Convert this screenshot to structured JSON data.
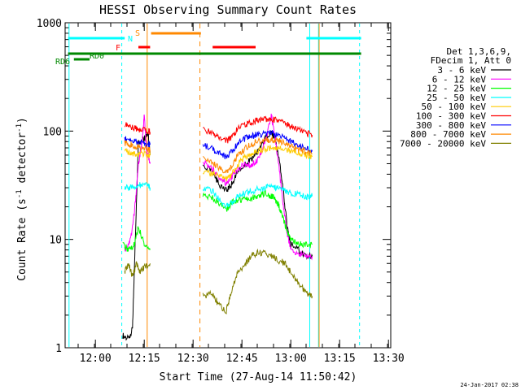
{
  "chart_data": {
    "type": "line",
    "title": "HESSI Observing Summary Count Rates",
    "xlabel": "Start Time (27-Aug-14 11:50:42)",
    "ylabel_main": "Count Rate (s",
    "ylabel_sup1": "-1",
    "ylabel_mid": " detector",
    "ylabel_sup2": "-1",
    "ylabel_end": ")",
    "y_scale": "log",
    "ylim": [
      1,
      1000
    ],
    "xlim": [
      "11:50:42",
      "13:30:42"
    ],
    "x_tick_labels": [
      "12:00",
      "12:15",
      "12:30",
      "12:45",
      "13:00",
      "13:15",
      "13:30"
    ],
    "x_ticks": [
      "12:00",
      "12:15",
      "12:30",
      "12:45",
      "13:00",
      "13:15",
      "13:30"
    ],
    "y_tick_labels": [
      "1",
      "10",
      "100",
      "1000"
    ],
    "y_ticks": [
      1,
      10,
      100,
      1000
    ],
    "legend_header": [
      "Det 1,3,6,9,",
      "FDecim 1, Att 0"
    ],
    "legend_position": "right",
    "series": [
      {
        "name": "3 - 6 keV",
        "color": "#000000",
        "seg1": [
          [
            12.14,
            1.3
          ],
          [
            12.17,
            1.2
          ],
          [
            12.19,
            1.5
          ],
          [
            12.2,
            6
          ],
          [
            12.22,
            80
          ],
          [
            12.25,
            85
          ],
          [
            12.27,
            95
          ],
          [
            12.28,
            60
          ]
        ],
        "seg2": [
          [
            12.55,
            48
          ],
          [
            12.6,
            42
          ],
          [
            12.63,
            33
          ],
          [
            12.67,
            28
          ],
          [
            12.7,
            33
          ],
          [
            12.73,
            42
          ],
          [
            12.77,
            50
          ],
          [
            12.8,
            55
          ],
          [
            12.83,
            65
          ],
          [
            12.87,
            85
          ],
          [
            12.9,
            95
          ],
          [
            12.92,
            85
          ],
          [
            12.94,
            55
          ],
          [
            12.96,
            30
          ],
          [
            12.98,
            14
          ],
          [
            13.0,
            9
          ],
          [
            13.04,
            8
          ],
          [
            13.08,
            7
          ],
          [
            13.11,
            7
          ]
        ]
      },
      {
        "name": "6 - 12 keV",
        "color": "#ff00ff",
        "seg1": [
          [
            12.15,
            8
          ],
          [
            12.18,
            10
          ],
          [
            12.2,
            18
          ],
          [
            12.22,
            50
          ],
          [
            12.24,
            80
          ],
          [
            12.25,
            140
          ],
          [
            12.26,
            70
          ],
          [
            12.28,
            50
          ]
        ],
        "seg2": [
          [
            12.55,
            52
          ],
          [
            12.6,
            45
          ],
          [
            12.63,
            38
          ],
          [
            12.67,
            33
          ],
          [
            12.7,
            38
          ],
          [
            12.73,
            45
          ],
          [
            12.77,
            50
          ],
          [
            12.8,
            48
          ],
          [
            12.83,
            55
          ],
          [
            12.87,
            80
          ],
          [
            12.9,
            140
          ],
          [
            12.92,
            85
          ],
          [
            12.94,
            45
          ],
          [
            12.96,
            22
          ],
          [
            12.98,
            12
          ],
          [
            13.0,
            8
          ],
          [
            13.04,
            7.5
          ],
          [
            13.08,
            7
          ],
          [
            13.11,
            7
          ]
        ]
      },
      {
        "name": "12 - 25 keV",
        "color": "#00ff00",
        "seg1": [
          [
            12.14,
            9
          ],
          [
            12.17,
            8
          ],
          [
            12.2,
            9
          ],
          [
            12.22,
            13
          ],
          [
            12.25,
            9
          ],
          [
            12.28,
            8
          ]
        ],
        "seg2": [
          [
            12.55,
            25
          ],
          [
            12.6,
            24
          ],
          [
            12.63,
            22
          ],
          [
            12.67,
            19
          ],
          [
            12.7,
            22
          ],
          [
            12.73,
            23
          ],
          [
            12.77,
            24
          ],
          [
            12.8,
            24
          ],
          [
            12.83,
            25
          ],
          [
            12.87,
            27
          ],
          [
            12.9,
            25
          ],
          [
            12.92,
            24
          ],
          [
            12.94,
            20
          ],
          [
            12.96,
            16
          ],
          [
            12.98,
            12
          ],
          [
            13.0,
            10
          ],
          [
            13.04,
            9
          ],
          [
            13.08,
            9
          ],
          [
            13.11,
            9
          ]
        ]
      },
      {
        "name": "25 - 50 keV",
        "color": "#00ffff",
        "seg1": [
          [
            12.15,
            30
          ],
          [
            12.18,
            30
          ],
          [
            12.21,
            31
          ],
          [
            12.24,
            32
          ],
          [
            12.27,
            31
          ],
          [
            12.28,
            30
          ]
        ],
        "seg2": [
          [
            12.55,
            30
          ],
          [
            12.6,
            28
          ],
          [
            12.63,
            24
          ],
          [
            12.67,
            20
          ],
          [
            12.7,
            22
          ],
          [
            12.73,
            25
          ],
          [
            12.77,
            27
          ],
          [
            12.8,
            28
          ],
          [
            12.83,
            29
          ],
          [
            12.87,
            30
          ],
          [
            12.9,
            31
          ],
          [
            12.93,
            30
          ],
          [
            12.97,
            28
          ],
          [
            13.0,
            27
          ],
          [
            13.04,
            26
          ],
          [
            13.08,
            25
          ],
          [
            13.11,
            25
          ]
        ]
      },
      {
        "name": "50 - 100 keV",
        "color": "#ffcc00",
        "seg1": [
          [
            12.15,
            65
          ],
          [
            12.18,
            63
          ],
          [
            12.21,
            62
          ],
          [
            12.24,
            61
          ],
          [
            12.27,
            60
          ],
          [
            12.28,
            60
          ]
        ],
        "seg2": [
          [
            12.55,
            42
          ],
          [
            12.6,
            40
          ],
          [
            12.63,
            38
          ],
          [
            12.67,
            36
          ],
          [
            12.7,
            40
          ],
          [
            12.73,
            50
          ],
          [
            12.77,
            58
          ],
          [
            12.8,
            62
          ],
          [
            12.83,
            66
          ],
          [
            12.87,
            68
          ],
          [
            12.9,
            70
          ],
          [
            12.93,
            70
          ],
          [
            12.97,
            68
          ],
          [
            13.0,
            66
          ],
          [
            13.04,
            63
          ],
          [
            13.08,
            60
          ],
          [
            13.11,
            58
          ]
        ]
      },
      {
        "name": "100 - 300 keV",
        "color": "#ff0000",
        "seg1": [
          [
            12.15,
            115
          ],
          [
            12.18,
            110
          ],
          [
            12.21,
            105
          ],
          [
            12.24,
            103
          ],
          [
            12.27,
            100
          ],
          [
            12.28,
            98
          ]
        ],
        "seg2": [
          [
            12.55,
            105
          ],
          [
            12.6,
            95
          ],
          [
            12.63,
            88
          ],
          [
            12.67,
            80
          ],
          [
            12.7,
            90
          ],
          [
            12.73,
            105
          ],
          [
            12.77,
            115
          ],
          [
            12.8,
            120
          ],
          [
            12.83,
            125
          ],
          [
            12.87,
            128
          ],
          [
            12.9,
            130
          ],
          [
            12.93,
            125
          ],
          [
            12.97,
            118
          ],
          [
            13.0,
            110
          ],
          [
            13.04,
            102
          ],
          [
            13.08,
            96
          ],
          [
            13.11,
            92
          ]
        ]
      },
      {
        "name": "300 - 800 keV",
        "color": "#0000ff",
        "seg1": [
          [
            12.15,
            85
          ],
          [
            12.18,
            82
          ],
          [
            12.21,
            80
          ],
          [
            12.24,
            78
          ],
          [
            12.27,
            76
          ],
          [
            12.28,
            75
          ]
        ],
        "seg2": [
          [
            12.55,
            75
          ],
          [
            12.6,
            68
          ],
          [
            12.63,
            63
          ],
          [
            12.67,
            58
          ],
          [
            12.7,
            65
          ],
          [
            12.73,
            78
          ],
          [
            12.77,
            86
          ],
          [
            12.8,
            90
          ],
          [
            12.83,
            93
          ],
          [
            12.87,
            95
          ],
          [
            12.9,
            96
          ],
          [
            12.93,
            93
          ],
          [
            12.97,
            88
          ],
          [
            13.0,
            80
          ],
          [
            13.04,
            74
          ],
          [
            13.08,
            68
          ],
          [
            13.11,
            65
          ]
        ]
      },
      {
        "name": "800 - 7000 keV",
        "color": "#ff8800",
        "seg1": [
          [
            12.15,
            78
          ],
          [
            12.18,
            75
          ],
          [
            12.21,
            72
          ],
          [
            12.24,
            70
          ],
          [
            12.27,
            68
          ],
          [
            12.28,
            67
          ]
        ],
        "seg2": [
          [
            12.55,
            55
          ],
          [
            12.6,
            50
          ],
          [
            12.63,
            46
          ],
          [
            12.67,
            42
          ],
          [
            12.7,
            48
          ],
          [
            12.73,
            60
          ],
          [
            12.77,
            70
          ],
          [
            12.8,
            76
          ],
          [
            12.83,
            80
          ],
          [
            12.87,
            82
          ],
          [
            12.9,
            84
          ],
          [
            12.93,
            82
          ],
          [
            12.97,
            78
          ],
          [
            13.0,
            72
          ],
          [
            13.04,
            68
          ],
          [
            13.08,
            64
          ],
          [
            13.11,
            62
          ]
        ]
      },
      {
        "name": "7000 - 20000 keV",
        "color": "#808000",
        "seg1": [
          [
            12.15,
            5
          ],
          [
            12.17,
            6
          ],
          [
            12.19,
            4.5
          ],
          [
            12.21,
            6
          ],
          [
            12.23,
            5
          ],
          [
            12.25,
            5.5
          ],
          [
            12.28,
            6
          ]
        ],
        "seg2": [
          [
            12.55,
            3
          ],
          [
            12.6,
            3.2
          ],
          [
            12.63,
            2.5
          ],
          [
            12.67,
            2.2
          ],
          [
            12.7,
            3.5
          ],
          [
            12.73,
            5
          ],
          [
            12.77,
            6
          ],
          [
            12.8,
            7
          ],
          [
            12.83,
            7.5
          ],
          [
            12.87,
            7.5
          ],
          [
            12.9,
            7
          ],
          [
            12.93,
            6.5
          ],
          [
            12.97,
            6
          ],
          [
            13.0,
            5
          ],
          [
            13.04,
            4
          ],
          [
            13.08,
            3.2
          ],
          [
            13.11,
            3
          ]
        ]
      }
    ],
    "flags": [
      {
        "label": "S",
        "color": "#ff8800",
        "row": "upper"
      },
      {
        "label": "N",
        "color": "#00ffff",
        "row": "middle"
      },
      {
        "label": "F",
        "color": "#ff0000",
        "row": "lower"
      },
      {
        "label": "RD0",
        "color": "#008800",
        "row": "night"
      },
      {
        "label": "RD6",
        "color": "#008800",
        "row": "night-low"
      }
    ],
    "footer_date": "24-Jan-2017 02:38"
  }
}
